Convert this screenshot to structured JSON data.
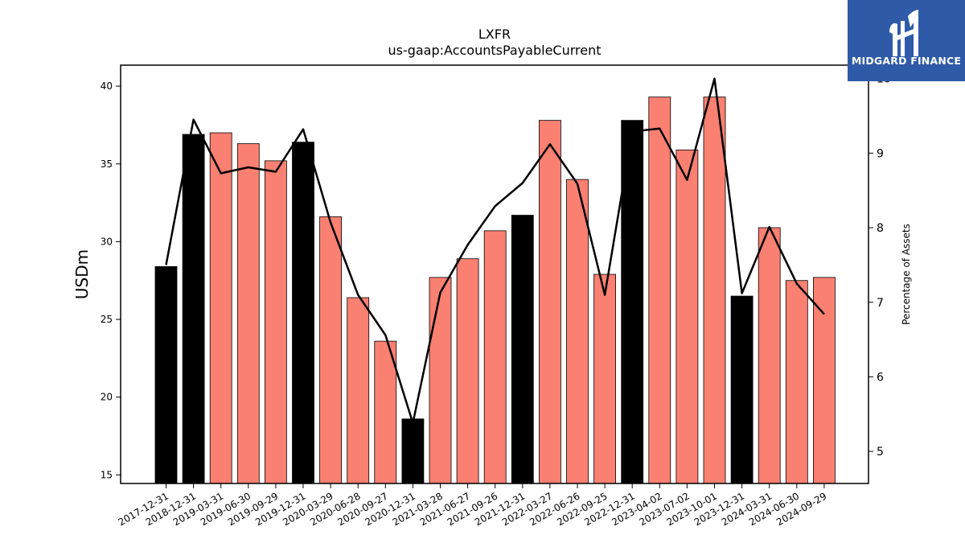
{
  "chart_data": {
    "type": "bar",
    "title": "LXFR",
    "subtitle": "us-gaap:AccountsPayableCurrent",
    "ylabel": "USDm",
    "y2label": "Percentage of Assets",
    "categories": [
      "2017-12-31",
      "2018-12-31",
      "2019-03-31",
      "2019-06-30",
      "2019-09-29",
      "2019-12-31",
      "2020-03-29",
      "2020-06-28",
      "2020-09-27",
      "2020-12-31",
      "2021-03-28",
      "2021-06-27",
      "2021-09-26",
      "2021-12-31",
      "2022-03-27",
      "2022-06-26",
      "2022-09-25",
      "2022-12-31",
      "2023-04-02",
      "2023-07-02",
      "2023-10-01",
      "2023-12-31",
      "2024-03-31",
      "2024-06-30",
      "2024-09-29"
    ],
    "series": [
      {
        "values": [
          28.4,
          36.9,
          37.0,
          36.3,
          35.2,
          36.4,
          31.6,
          26.4,
          23.6,
          18.6,
          27.7,
          28.9,
          30.7,
          31.7,
          37.8,
          34.0,
          27.9,
          37.8,
          39.3,
          35.9,
          39.3,
          26.5,
          30.9,
          27.5,
          27.7
        ],
        "bar_colors": [
          "#000000",
          "#000000",
          "#fa8072",
          "#fa8072",
          "#fa8072",
          "#000000",
          "#fa8072",
          "#fa8072",
          "#fa8072",
          "#000000",
          "#fa8072",
          "#fa8072",
          "#fa8072",
          "#000000",
          "#fa8072",
          "#fa8072",
          "#fa8072",
          "#000000",
          "#fa8072",
          "#fa8072",
          "#fa8072",
          "#000000",
          "#fa8072",
          "#fa8072",
          "#fa8072"
        ]
      },
      {
        "axis": "right",
        "type": "line",
        "color": "#000000",
        "values": [
          7.5,
          9.45,
          8.73,
          8.81,
          8.75,
          9.32,
          8.07,
          7.1,
          6.56,
          5.38,
          7.13,
          7.77,
          8.29,
          8.6,
          9.12,
          8.59,
          7.1,
          9.29,
          9.33,
          8.64,
          10.0,
          7.12,
          8.01,
          7.25,
          6.84
        ]
      }
    ],
    "ylim": [
      14.45,
      41.35
    ],
    "yticks": [
      15,
      20,
      25,
      30,
      35,
      40
    ],
    "y2lim": [
      4.57,
      10.18
    ],
    "y2ticks": [
      5,
      6,
      7,
      8,
      9,
      10
    ],
    "grid": false,
    "legend": "none"
  },
  "logo": {
    "text": "MIDGARD FINANCE",
    "background": "#2e5aa8",
    "text_color": "#ffffff"
  }
}
